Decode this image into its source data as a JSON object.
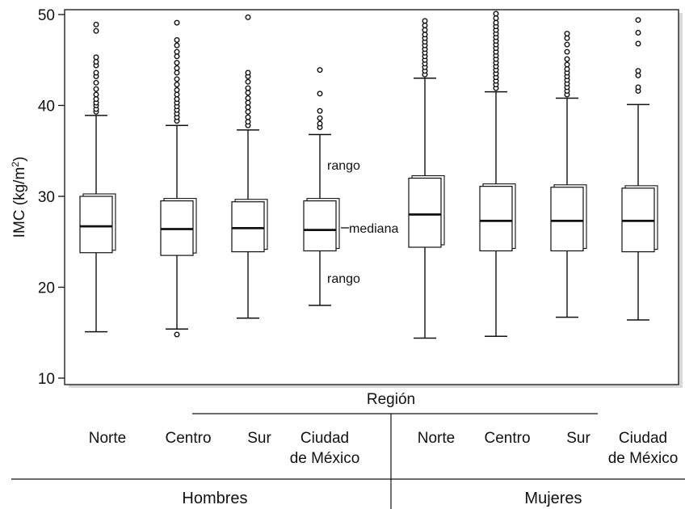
{
  "chart_data": {
    "type": "box",
    "ylabel_main": "IMC (kg/m",
    "ylabel_sup": "2",
    "ylabel_end": ")",
    "xlabel": "Región",
    "ylim": [
      10,
      50
    ],
    "yticks": [
      10,
      20,
      30,
      40,
      50
    ],
    "groups": [
      {
        "name": "Hombres",
        "categories": [
          {
            "line1": "Norte",
            "line2": ""
          },
          {
            "line1": "Centro",
            "line2": ""
          },
          {
            "line1": "Sur",
            "line2": ""
          },
          {
            "line1": "Ciudad",
            "line2": "de México"
          }
        ]
      },
      {
        "name": "Mujeres",
        "categories": [
          {
            "line1": "Norte",
            "line2": ""
          },
          {
            "line1": "Centro",
            "line2": ""
          },
          {
            "line1": "Sur",
            "line2": ""
          },
          {
            "line1": "Ciudad",
            "line2": "de México"
          }
        ]
      }
    ],
    "boxes": [
      {
        "group": "Hombres",
        "region": "Norte",
        "whisker_low": 15.1,
        "q1": 23.8,
        "median": 26.7,
        "q3": 30.0,
        "whisker_high": 38.9,
        "outliers": [
          39.3,
          39.6,
          40.0,
          40.3,
          40.7,
          41.2,
          41.8,
          42.5,
          43.2,
          43.6,
          44.4,
          44.8,
          45.3,
          48.2,
          48.9
        ]
      },
      {
        "group": "Hombres",
        "region": "Centro",
        "whisker_low": 15.4,
        "q1": 23.5,
        "median": 26.4,
        "q3": 29.5,
        "whisker_high": 37.8,
        "outliers": [
          14.8,
          38.3,
          38.7,
          39.1,
          39.5,
          39.9,
          40.3,
          40.7,
          41.2,
          41.7,
          42.3,
          42.9,
          43.6,
          44.1,
          44.7,
          45.4,
          45.9,
          46.6,
          47.2,
          49.1
        ]
      },
      {
        "group": "Hombres",
        "region": "Sur",
        "whisker_low": 16.6,
        "q1": 23.9,
        "median": 26.5,
        "q3": 29.4,
        "whisker_high": 37.3,
        "outliers": [
          37.8,
          38.2,
          38.7,
          39.3,
          39.8,
          40.3,
          40.8,
          41.4,
          41.9,
          42.6,
          43.2,
          43.6,
          49.7
        ]
      },
      {
        "group": "Hombres",
        "region": "Ciudad de México",
        "whisker_low": 18.0,
        "q1": 24.0,
        "median": 26.3,
        "q3": 29.5,
        "whisker_high": 36.8,
        "outliers": [
          37.6,
          38.0,
          38.6,
          39.4,
          41.3,
          43.9
        ]
      },
      {
        "group": "Mujeres",
        "region": "Norte",
        "whisker_low": 14.4,
        "q1": 24.4,
        "median": 28.0,
        "q3": 32.0,
        "whisker_high": 43.0,
        "outliers": [
          43.4,
          43.8,
          44.2,
          44.6,
          45.0,
          45.4,
          45.8,
          46.2,
          46.6,
          47.0,
          47.4,
          47.8,
          48.3,
          48.8,
          49.3
        ]
      },
      {
        "group": "Mujeres",
        "region": "Centro",
        "whisker_low": 14.6,
        "q1": 24.0,
        "median": 27.3,
        "q3": 31.1,
        "whisker_high": 41.5,
        "outliers": [
          41.9,
          42.3,
          42.7,
          43.1,
          43.5,
          43.9,
          44.3,
          44.7,
          45.1,
          45.5,
          45.9,
          46.3,
          46.7,
          47.1,
          47.5,
          47.9,
          48.3,
          48.7,
          49.1,
          49.6,
          50.1
        ]
      },
      {
        "group": "Mujeres",
        "region": "Sur",
        "whisker_low": 16.7,
        "q1": 24.0,
        "median": 27.3,
        "q3": 31.0,
        "whisker_high": 40.8,
        "outliers": [
          41.2,
          41.6,
          42.0,
          42.4,
          42.8,
          43.2,
          43.6,
          44.0,
          44.5,
          45.1,
          45.9,
          46.7,
          47.4,
          47.9
        ]
      },
      {
        "group": "Mujeres",
        "region": "Ciudad de México",
        "whisker_low": 16.4,
        "q1": 23.9,
        "median": 27.3,
        "q3": 30.9,
        "whisker_high": 40.1,
        "outliers": [
          41.6,
          42.0,
          43.3,
          43.8,
          46.8,
          48.0,
          49.4
        ]
      }
    ],
    "annotations": {
      "upper": "rango",
      "median": "mediana",
      "lower": "rango"
    }
  }
}
